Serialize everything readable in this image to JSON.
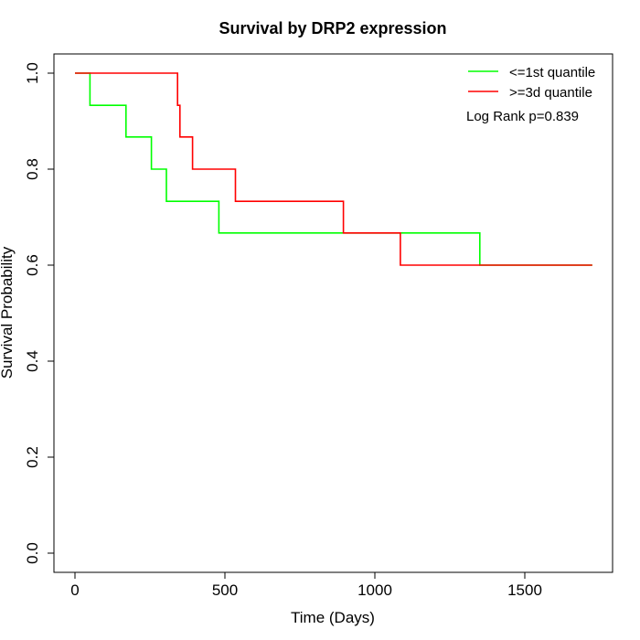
{
  "chart_data": {
    "type": "line",
    "subtype": "kaplan-meier-step",
    "title": "Survival by DRP2 expression",
    "xlabel": "Time (Days)",
    "ylabel": "Survival Probability",
    "xlim": [
      0,
      1800
    ],
    "ylim": [
      0,
      1
    ],
    "x_ticks": [
      0,
      500,
      1000,
      1500
    ],
    "x_tick_labels": [
      "0",
      "500",
      "1000",
      "1500"
    ],
    "y_ticks": [
      0,
      0.2,
      0.4,
      0.6,
      0.8,
      1.0
    ],
    "y_tick_labels": [
      "0.0",
      "0.2",
      "0.4",
      "0.6",
      "0.8",
      "1.0"
    ],
    "grid": false,
    "legend_position": "top-right",
    "annotation": "Log Rank p=0.839",
    "series": [
      {
        "name": "<=1st quantile",
        "color": "#00ff00",
        "x": [
          0,
          50,
          50,
          170,
          170,
          255,
          255,
          305,
          305,
          480,
          480,
          1350,
          1350,
          1725
        ],
        "y": [
          1.0,
          1.0,
          0.933,
          0.933,
          0.867,
          0.867,
          0.8,
          0.8,
          0.733,
          0.733,
          0.667,
          0.667,
          0.6,
          0.6
        ]
      },
      {
        "name": ">=3d quantile",
        "color": "#ff0000",
        "x": [
          0,
          342,
          342,
          350,
          350,
          392,
          392,
          535,
          535,
          895,
          895,
          1085,
          1085,
          1725
        ],
        "y": [
          1.0,
          1.0,
          0.933,
          0.933,
          0.867,
          0.867,
          0.8,
          0.8,
          0.733,
          0.733,
          0.667,
          0.667,
          0.6,
          0.6
        ]
      }
    ]
  }
}
